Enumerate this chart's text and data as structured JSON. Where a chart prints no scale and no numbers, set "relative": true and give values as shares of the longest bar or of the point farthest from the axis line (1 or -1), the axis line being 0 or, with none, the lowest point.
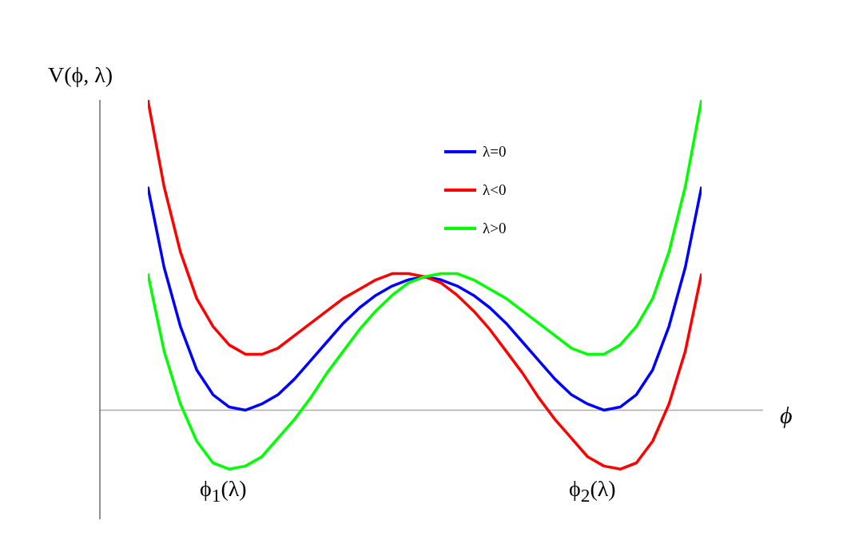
{
  "chart_data": {
    "type": "line",
    "relative": true,
    "ylabel": "V(ϕ, λ)",
    "xlabel": "ϕ",
    "categories": [
      null,
      null,
      null,
      null,
      null,
      null,
      null,
      null,
      null,
      null,
      null,
      null,
      null,
      null,
      null,
      null,
      null,
      null,
      null,
      null,
      null,
      null,
      null,
      null,
      null,
      null,
      null,
      null,
      null,
      null,
      null,
      null,
      null,
      null,
      null
    ],
    "series": [
      {
        "name": "λ=0",
        "color": "#0000ff",
        "values": [
          0.72,
          0.46,
          0.27,
          0.13,
          0.05,
          0.01,
          0.0,
          0.02,
          0.05,
          0.1,
          0.16,
          0.22,
          0.28,
          0.33,
          0.37,
          0.4,
          0.42,
          0.43,
          0.42,
          0.4,
          0.37,
          0.33,
          0.28,
          0.22,
          0.16,
          0.1,
          0.05,
          0.02,
          0.0,
          0.01,
          0.05,
          0.13,
          0.27,
          0.46,
          0.72
        ]
      },
      {
        "name": "λ<0",
        "color": "#ff0000",
        "values": [
          1.0,
          0.72,
          0.51,
          0.36,
          0.27,
          0.21,
          0.18,
          0.18,
          0.2,
          0.24,
          0.28,
          0.32,
          0.36,
          0.39,
          0.42,
          0.44,
          0.44,
          0.43,
          0.41,
          0.37,
          0.32,
          0.26,
          0.19,
          0.12,
          0.04,
          -0.03,
          -0.09,
          -0.15,
          -0.18,
          -0.19,
          -0.17,
          -0.1,
          0.02,
          0.19,
          0.44
        ]
      },
      {
        "name": "λ>0",
        "color": "#00ff00",
        "values": [
          0.44,
          0.19,
          0.02,
          -0.1,
          -0.17,
          -0.19,
          -0.18,
          -0.15,
          -0.09,
          -0.03,
          0.04,
          0.12,
          0.19,
          0.26,
          0.32,
          0.37,
          0.41,
          0.43,
          0.44,
          0.44,
          0.42,
          0.39,
          0.36,
          0.32,
          0.28,
          0.24,
          0.2,
          0.18,
          0.18,
          0.21,
          0.27,
          0.36,
          0.51,
          0.72,
          1.0
        ]
      }
    ],
    "annotations": [
      "ϕ$_{1}$(λ)",
      "ϕ$_{2}$(λ)"
    ],
    "legend": "top",
    "grid": false,
    "marker": "none",
    "line_style": "solid"
  }
}
